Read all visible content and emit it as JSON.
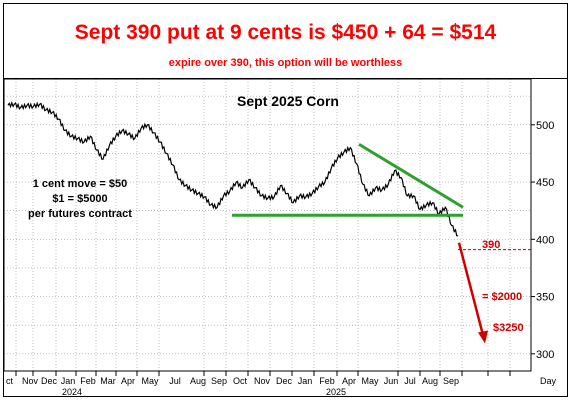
{
  "header": {
    "headline": "Sept 390 put at 9 cents is $450 + 64 = $514",
    "subline": "expire over 390, this option will be worthless"
  },
  "chart_data": {
    "type": "line",
    "title": "Sept 2025 Corn",
    "y_ticks": [
      300,
      350,
      400,
      450,
      500
    ],
    "ylim": [
      285,
      540
    ],
    "x_axis_label": "Day",
    "x_months": [
      "Oct",
      "Nov",
      "Dec",
      "Jan",
      "Feb",
      "Mar",
      "Apr",
      "May",
      "Jun",
      "Jul",
      "Aug",
      "Sep",
      "Oct",
      "Nov",
      "Dec",
      "Jan",
      "Feb",
      "Mar",
      "Apr",
      "May",
      "Jun",
      "Jul",
      "Aug",
      "Sep"
    ],
    "x_month_labels": [
      "ct",
      "Nov",
      "Dec",
      "Jan",
      "Feb",
      "Mar",
      "Apr",
      "May",
      "Jul",
      "Aug",
      "Sep",
      "Oct",
      "Nov",
      "Dec",
      "Jan",
      "Feb",
      "Apr",
      "May",
      "Jun",
      "Jul",
      "Aug",
      "Sep"
    ],
    "year_labels": [
      "2024",
      "2025"
    ],
    "grid": true,
    "series": [
      {
        "points": [
          [
            0,
            517
          ],
          [
            2,
            518
          ],
          [
            4,
            515
          ],
          [
            6,
            517
          ],
          [
            8,
            516
          ],
          [
            10,
            518
          ],
          [
            12,
            513
          ],
          [
            14,
            511
          ],
          [
            16,
            505
          ],
          [
            18,
            495
          ],
          [
            20,
            490
          ],
          [
            22,
            488
          ],
          [
            24,
            485
          ],
          [
            26,
            490
          ],
          [
            28,
            478
          ],
          [
            30,
            470
          ],
          [
            32,
            482
          ],
          [
            34,
            490
          ],
          [
            36,
            495
          ],
          [
            38,
            492
          ],
          [
            40,
            488
          ],
          [
            42,
            497
          ],
          [
            44,
            500
          ],
          [
            46,
            493
          ],
          [
            48,
            485
          ],
          [
            50,
            475
          ],
          [
            52,
            465
          ],
          [
            54,
            452
          ],
          [
            56,
            447
          ],
          [
            58,
            443
          ],
          [
            60,
            440
          ],
          [
            62,
            437
          ],
          [
            64,
            430
          ],
          [
            66,
            428
          ],
          [
            68,
            438
          ],
          [
            70,
            442
          ],
          [
            72,
            450
          ],
          [
            74,
            445
          ],
          [
            76,
            452
          ],
          [
            78,
            445
          ],
          [
            80,
            438
          ],
          [
            82,
            436
          ],
          [
            84,
            437
          ],
          [
            86,
            447
          ],
          [
            88,
            440
          ],
          [
            90,
            432
          ],
          [
            92,
            438
          ],
          [
            94,
            437
          ],
          [
            96,
            440
          ],
          [
            98,
            446
          ],
          [
            100,
            450
          ],
          [
            102,
            462
          ],
          [
            104,
            471
          ],
          [
            106,
            476
          ],
          [
            108,
            480
          ],
          [
            110,
            466
          ],
          [
            112,
            448
          ],
          [
            114,
            438
          ],
          [
            116,
            445
          ],
          [
            118,
            443
          ],
          [
            120,
            448
          ],
          [
            122,
            460
          ],
          [
            124,
            454
          ],
          [
            126,
            438
          ],
          [
            128,
            438
          ],
          [
            130,
            426
          ],
          [
            132,
            430
          ],
          [
            134,
            432
          ],
          [
            136,
            422
          ],
          [
            138,
            428
          ],
          [
            140,
            412
          ],
          [
            142,
            403
          ]
        ]
      }
    ],
    "annotations": {
      "note_lines": [
        "1 cent move = $50",
        "$1 = $5000",
        "per futures contract"
      ],
      "strike_label": "390",
      "loss_2000": "= $2000",
      "loss_3250": "$3250"
    },
    "colors": {
      "price_line": "#000000",
      "trend_lines": "#2ea02e",
      "strike_line": "#d00000",
      "arrow": "#d00000",
      "headline": "#ff0000"
    }
  }
}
